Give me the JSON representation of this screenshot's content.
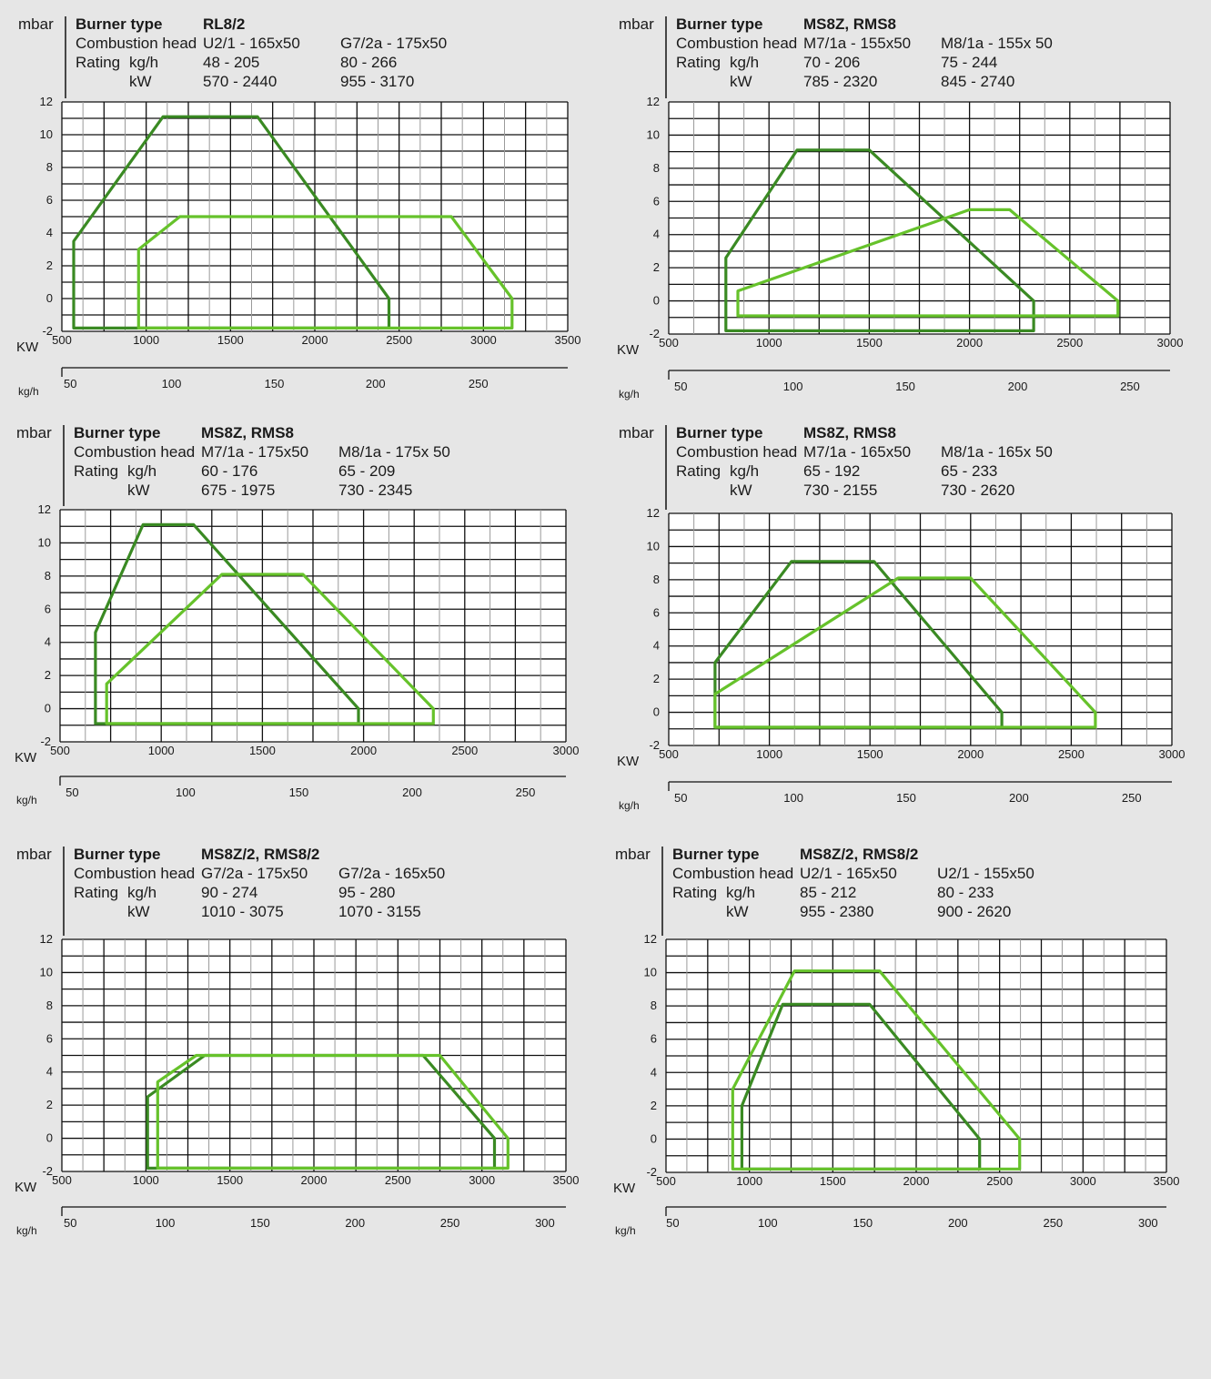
{
  "colors": {
    "dark_green": "#3a8a23",
    "light_green": "#66c22b",
    "grid_major": "#111111",
    "grid_minor": "#9a9a9a",
    "background": "#e6e6e6",
    "plot_bg": "#ffffff"
  },
  "labels": {
    "y_unit": "mbar",
    "x_unit": "KW",
    "x2_unit": "kg/h",
    "burner_type": "Burner type",
    "combustion_head": "Combustion head",
    "rating": "Rating",
    "rating_kgh": "kg/h",
    "rating_kw": "kW"
  },
  "chart_data": [
    {
      "type": "area",
      "title": "RL8/2",
      "header": {
        "heads": [
          "U2/1 - 165x50",
          "G7/2a - 175x50"
        ],
        "kgh": [
          "48 - 205",
          "80 - 266"
        ],
        "kw": [
          "570 - 2440",
          "955 - 3170"
        ]
      },
      "xlim": [
        500,
        3500
      ],
      "xticks": [
        500,
        1000,
        1500,
        2000,
        2500,
        3000,
        3500
      ],
      "ylim": [
        -2,
        12
      ],
      "yticks": [
        -2,
        0,
        2,
        4,
        6,
        8,
        10,
        12
      ],
      "kgh_ticks": [
        {
          "label": "50",
          "kw": 550
        },
        {
          "label": "100",
          "kw": 1150
        },
        {
          "label": "150",
          "kw": 1760
        },
        {
          "label": "200",
          "kw": 2360
        },
        {
          "label": "250",
          "kw": 2970
        }
      ],
      "series": [
        {
          "color": "dark",
          "points": [
            [
              570,
              -1.8
            ],
            [
              570,
              3.5
            ],
            [
              1100,
              11.1
            ],
            [
              1660,
              11.1
            ],
            [
              2440,
              0
            ],
            [
              2440,
              -1.8
            ]
          ]
        },
        {
          "color": "light",
          "points": [
            [
              955,
              -1.8
            ],
            [
              955,
              3
            ],
            [
              1200,
              5
            ],
            [
              2810,
              5
            ],
            [
              3170,
              0
            ],
            [
              3170,
              -1.8
            ]
          ]
        }
      ]
    },
    {
      "type": "area",
      "title": "MS8Z, RMS8",
      "header": {
        "heads": [
          "M7/1a - 155x50",
          "M8/1a - 155x 50"
        ],
        "kgh": [
          "70 - 206",
          "75 - 244"
        ],
        "kw": [
          "785 - 2320",
          "845 - 2740"
        ]
      },
      "xlim": [
        500,
        3000
      ],
      "xticks": [
        500,
        1000,
        1500,
        2000,
        2500,
        3000
      ],
      "ylim": [
        -2,
        12
      ],
      "yticks": [
        -2,
        0,
        2,
        4,
        6,
        8,
        10,
        12
      ],
      "kgh_ticks": [
        {
          "label": "50",
          "kw": 560
        },
        {
          "label": "100",
          "kw": 1120
        },
        {
          "label": "150",
          "kw": 1680
        },
        {
          "label": "200",
          "kw": 2240
        },
        {
          "label": "250",
          "kw": 2800
        }
      ],
      "series": [
        {
          "color": "dark",
          "points": [
            [
              785,
              -1.8
            ],
            [
              785,
              2.6
            ],
            [
              1140,
              9.1
            ],
            [
              1500,
              9.1
            ],
            [
              2320,
              0
            ],
            [
              2320,
              -1.8
            ]
          ]
        },
        {
          "color": "light",
          "points": [
            [
              845,
              -0.9
            ],
            [
              845,
              0.6
            ],
            [
              2000,
              5.5
            ],
            [
              2200,
              5.5
            ],
            [
              2740,
              0
            ],
            [
              2740,
              -0.9
            ]
          ]
        }
      ]
    },
    {
      "type": "area",
      "title": "MS8Z, RMS8",
      "header": {
        "heads": [
          "M7/1a - 175x50",
          "M8/1a - 175x 50"
        ],
        "kgh": [
          "60 - 176",
          "65 - 209"
        ],
        "kw": [
          "675 - 1975",
          "730 - 2345"
        ]
      },
      "xlim": [
        500,
        3000
      ],
      "xticks": [
        500,
        1000,
        1500,
        2000,
        2500,
        3000
      ],
      "ylim": [
        -2,
        12
      ],
      "yticks": [
        -2,
        0,
        2,
        4,
        6,
        8,
        10,
        12
      ],
      "kgh_ticks": [
        {
          "label": "50",
          "kw": 560
        },
        {
          "label": "100",
          "kw": 1120
        },
        {
          "label": "150",
          "kw": 1680
        },
        {
          "label": "200",
          "kw": 2240
        },
        {
          "label": "250",
          "kw": 2800
        }
      ],
      "series": [
        {
          "color": "dark",
          "points": [
            [
              675,
              -0.9
            ],
            [
              675,
              4.6
            ],
            [
              910,
              11.1
            ],
            [
              1160,
              11.1
            ],
            [
              1975,
              0
            ],
            [
              1975,
              -0.9
            ]
          ]
        },
        {
          "color": "light",
          "points": [
            [
              730,
              -0.9
            ],
            [
              730,
              1.5
            ],
            [
              1300,
              8.1
            ],
            [
              1700,
              8.1
            ],
            [
              2345,
              0
            ],
            [
              2345,
              -0.9
            ]
          ]
        }
      ]
    },
    {
      "type": "area",
      "title": "MS8Z, RMS8",
      "header": {
        "heads": [
          "M7/1a - 165x50",
          "M8/1a - 165x 50"
        ],
        "kgh": [
          "65 - 192",
          "65 - 233"
        ],
        "kw": [
          "730 - 2155",
          "730 - 2620"
        ]
      },
      "xlim": [
        500,
        3000
      ],
      "xticks": [
        500,
        1000,
        1500,
        2000,
        2500,
        3000
      ],
      "ylim": [
        -2,
        12
      ],
      "yticks": [
        -2,
        0,
        2,
        4,
        6,
        8,
        10,
        12
      ],
      "kgh_ticks": [
        {
          "label": "50",
          "kw": 560
        },
        {
          "label": "100",
          "kw": 1120
        },
        {
          "label": "150",
          "kw": 1680
        },
        {
          "label": "200",
          "kw": 2240
        },
        {
          "label": "250",
          "kw": 2800
        }
      ],
      "series": [
        {
          "color": "dark",
          "points": [
            [
              730,
              -0.9
            ],
            [
              730,
              3
            ],
            [
              1110,
              9.1
            ],
            [
              1520,
              9.1
            ],
            [
              2155,
              0
            ],
            [
              2155,
              -0.9
            ]
          ]
        },
        {
          "color": "light",
          "points": [
            [
              730,
              -0.9
            ],
            [
              730,
              1.1
            ],
            [
              1640,
              8.1
            ],
            [
              2000,
              8.1
            ],
            [
              2620,
              0
            ],
            [
              2620,
              -0.9
            ]
          ]
        }
      ]
    },
    {
      "type": "area",
      "title": "MS8Z/2, RMS8/2",
      "header": {
        "heads": [
          "G7/2a - 175x50",
          "G7/2a - 165x50"
        ],
        "kgh": [
          "90 - 274",
          "95 - 280"
        ],
        "kw": [
          "1010 - 3075",
          "1070 - 3155"
        ]
      },
      "xlim": [
        500,
        3500
      ],
      "xticks": [
        500,
        1000,
        1500,
        2000,
        2500,
        3000,
        3500
      ],
      "ylim": [
        -2,
        12
      ],
      "yticks": [
        -2,
        0,
        2,
        4,
        6,
        8,
        10,
        12
      ],
      "kgh_ticks": [
        {
          "label": "50",
          "kw": 550
        },
        {
          "label": "100",
          "kw": 1115
        },
        {
          "label": "150",
          "kw": 1680
        },
        {
          "label": "200",
          "kw": 2245
        },
        {
          "label": "250",
          "kw": 2810
        },
        {
          "label": "300",
          "kw": 3375
        }
      ],
      "series": [
        {
          "color": "dark",
          "points": [
            [
              1010,
              -1.8
            ],
            [
              1010,
              2.5
            ],
            [
              1350,
              5
            ],
            [
              2650,
              5
            ],
            [
              3075,
              0
            ],
            [
              3075,
              -1.8
            ]
          ]
        },
        {
          "color": "light",
          "points": [
            [
              1070,
              -1.8
            ],
            [
              1070,
              3.4
            ],
            [
              1300,
              5
            ],
            [
              2750,
              5
            ],
            [
              3155,
              0
            ],
            [
              3155,
              -1.8
            ]
          ]
        }
      ]
    },
    {
      "type": "area",
      "title": "MS8Z/2, RMS8/2",
      "header": {
        "heads": [
          "U2/1 - 165x50",
          "U2/1 - 155x50"
        ],
        "kgh": [
          "85 - 212",
          "80 - 233"
        ],
        "kw": [
          "955 - 2380",
          "900 - 2620"
        ]
      },
      "xlim": [
        500,
        3500
      ],
      "xticks": [
        500,
        1000,
        1500,
        2000,
        2500,
        3000,
        3500
      ],
      "ylim": [
        -2,
        12
      ],
      "yticks": [
        -2,
        0,
        2,
        4,
        6,
        8,
        10,
        12
      ],
      "kgh_ticks": [
        {
          "label": "50",
          "kw": 540
        },
        {
          "label": "100",
          "kw": 1110
        },
        {
          "label": "150",
          "kw": 1680
        },
        {
          "label": "200",
          "kw": 2250
        },
        {
          "label": "250",
          "kw": 2820
        },
        {
          "label": "300",
          "kw": 3390
        }
      ],
      "series": [
        {
          "color": "dark",
          "points": [
            [
              955,
              -1.8
            ],
            [
              955,
              2
            ],
            [
              1200,
              8.1
            ],
            [
              1720,
              8.1
            ],
            [
              2380,
              0
            ],
            [
              2380,
              -1.8
            ]
          ]
        },
        {
          "color": "light",
          "points": [
            [
              900,
              -1.8
            ],
            [
              900,
              3
            ],
            [
              1270,
              10.1
            ],
            [
              1780,
              10.1
            ],
            [
              2620,
              0
            ],
            [
              2620,
              -1.8
            ]
          ]
        }
      ]
    }
  ]
}
